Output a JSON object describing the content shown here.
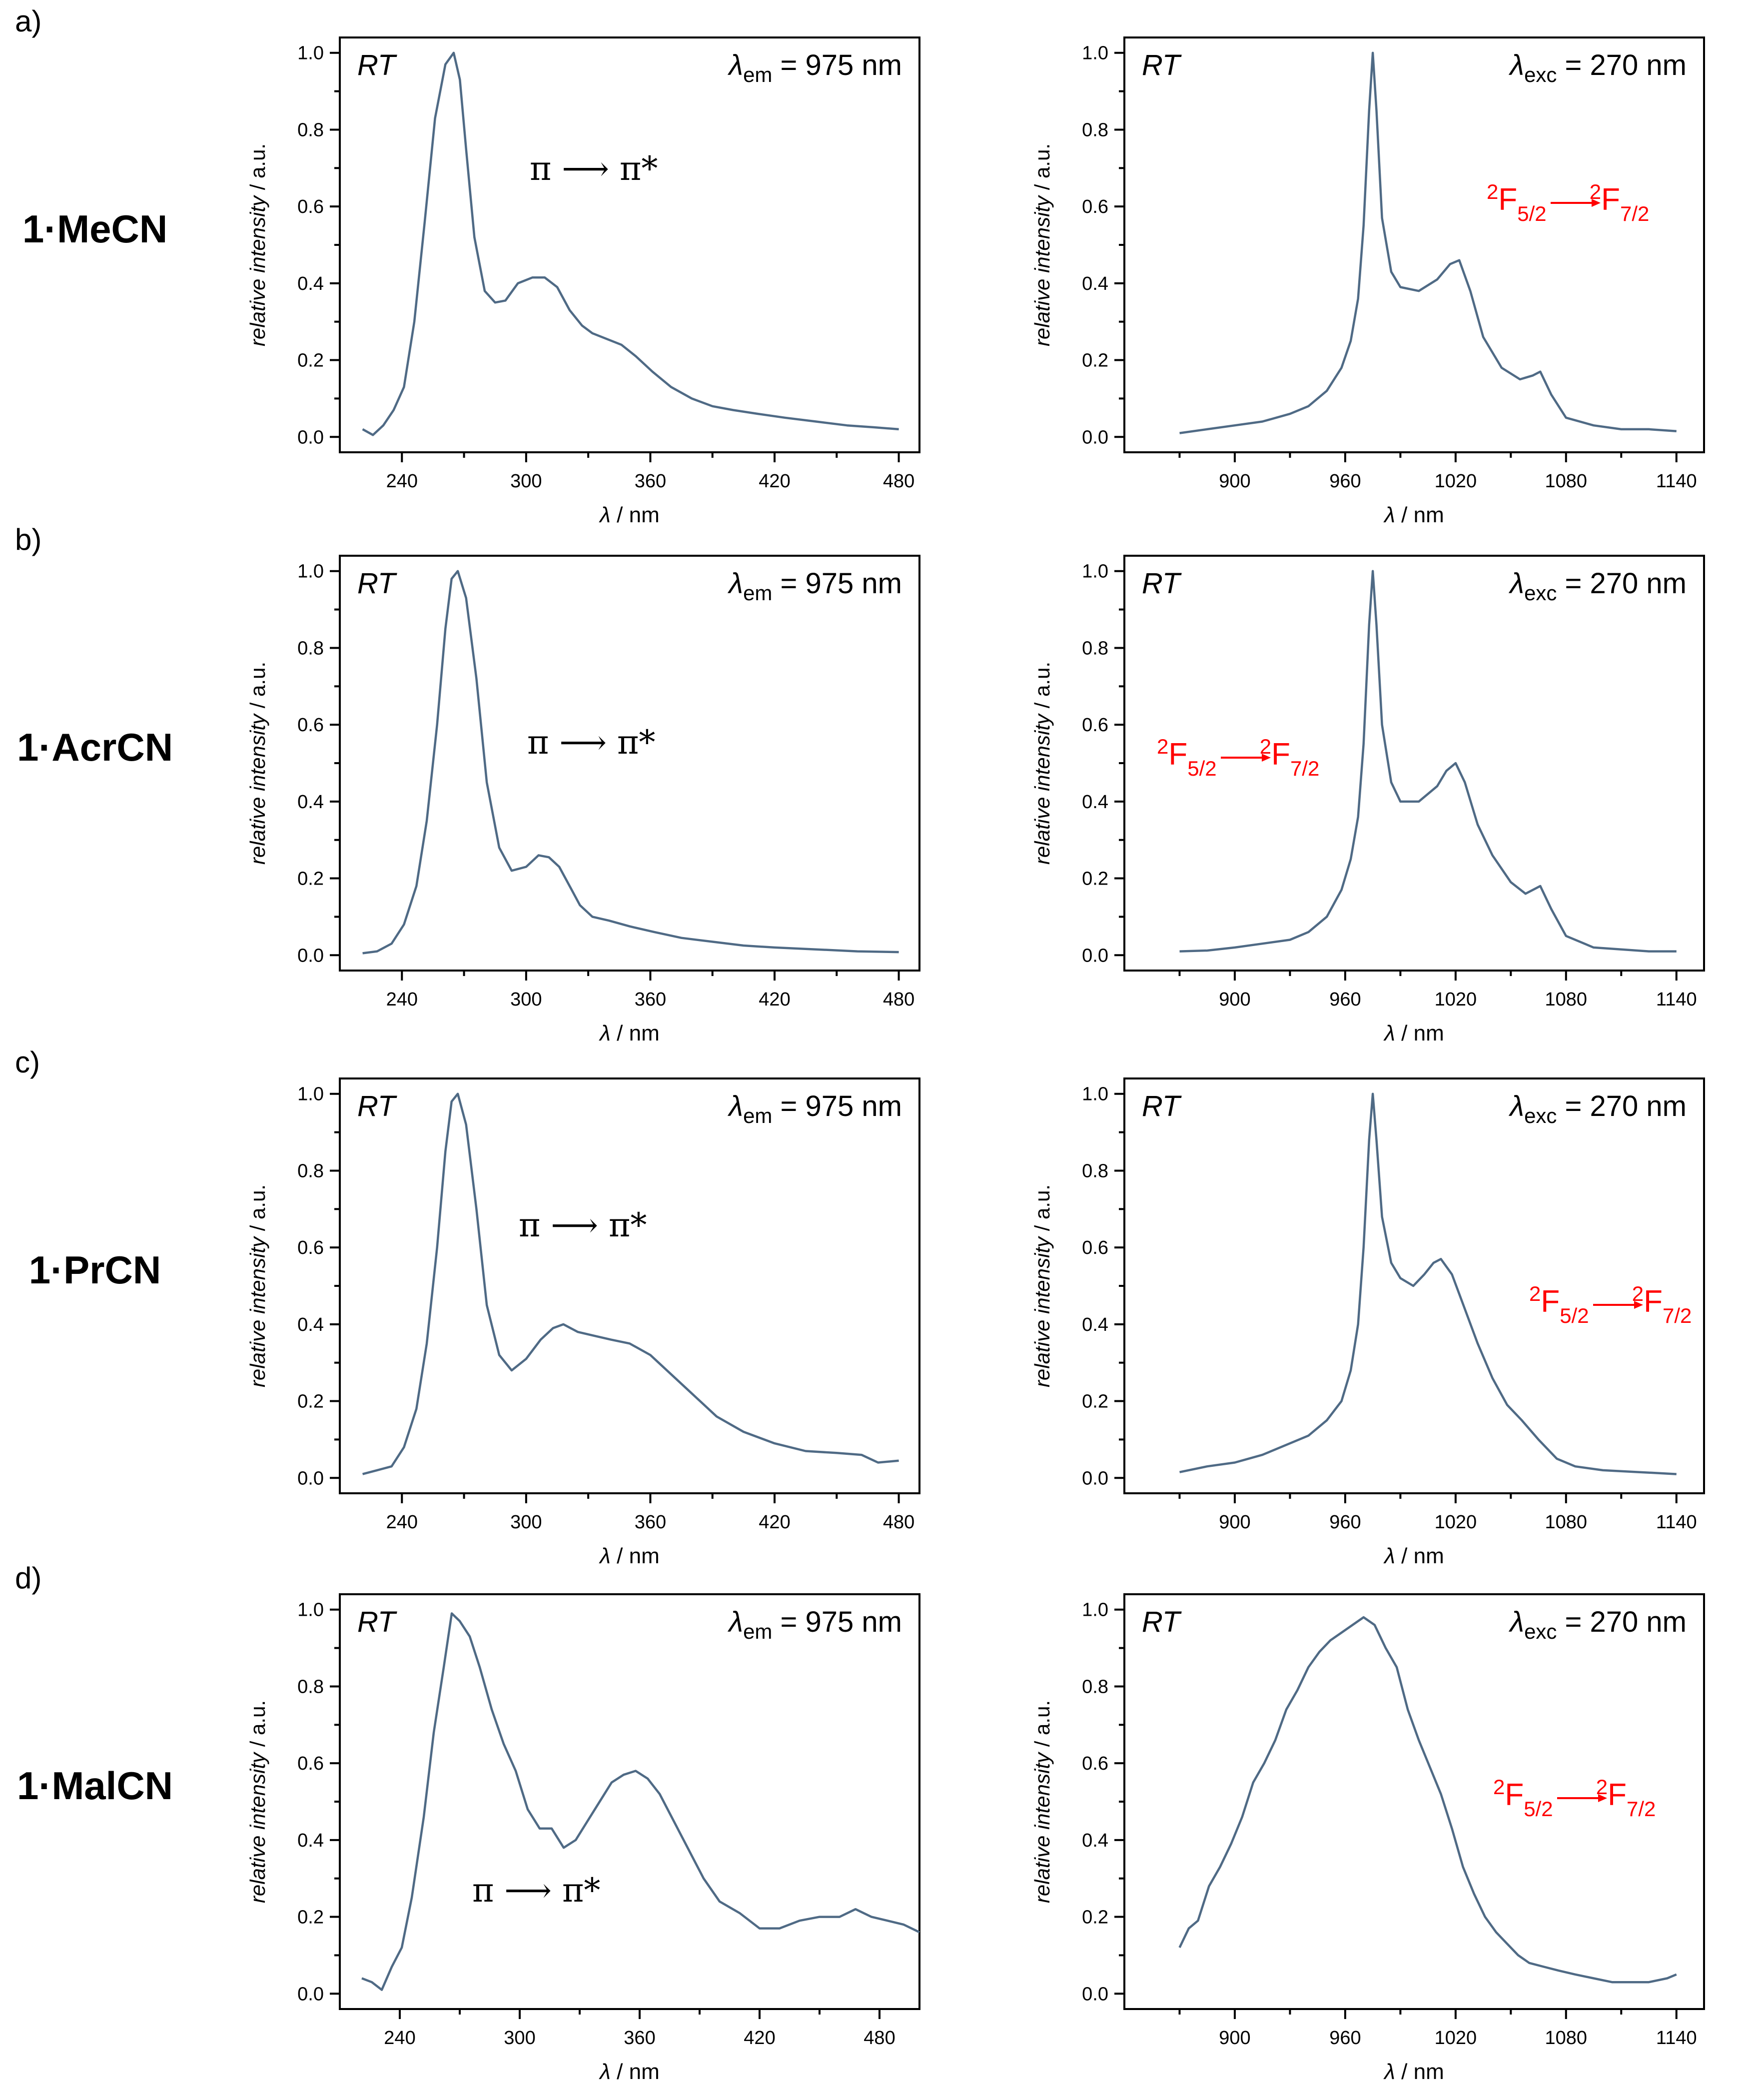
{
  "common": {
    "rt_label": "RT",
    "lambda_symbol": "λ",
    "em_sub": "em",
    "exc_sub": "exc",
    "em_value": " = 975 nm",
    "exc_value": " = 270 nm",
    "xlabel_unit": " / nm",
    "ylabel": "relative intensity / a.u.",
    "pi_transition": "π ⟶ π*",
    "f_transition": {
      "left": "F",
      "left_sup": "2",
      "left_sub": "5/2",
      "right": "F",
      "right_sup": "2",
      "right_sub": "7/2"
    },
    "color_line": "#4f6a85",
    "color_transition": "#ff0000"
  },
  "rows": [
    {
      "letter": "a)",
      "compound": "1·MeCN"
    },
    {
      "letter": "b)",
      "compound": "1·AcrCN"
    },
    {
      "letter": "c)",
      "compound": "1·PrCN"
    },
    {
      "letter": "d)",
      "compound": "1·MalCN"
    }
  ],
  "chart_data": [
    {
      "panel": "a-excitation",
      "type": "line",
      "title": "λem = 975 nm",
      "xlabel": "λ / nm",
      "ylabel": "relative intensity / a.u.",
      "xlim": [
        210,
        490
      ],
      "ylim": [
        -0.04,
        1.04
      ],
      "xticks": [
        240,
        300,
        360,
        420,
        480
      ],
      "yticks": [
        0.0,
        0.2,
        0.4,
        0.6,
        0.8,
        1.0
      ],
      "x": [
        221,
        226,
        231,
        236,
        241,
        246,
        251,
        256,
        261,
        265,
        268,
        271,
        275,
        280,
        285,
        290,
        296,
        303,
        309,
        315,
        321,
        327,
        332,
        339,
        346,
        353,
        361,
        370,
        380,
        390,
        400,
        412,
        425,
        440,
        455,
        468,
        480
      ],
      "values": [
        0.02,
        0.005,
        0.03,
        0.07,
        0.13,
        0.3,
        0.56,
        0.83,
        0.97,
        1.0,
        0.93,
        0.75,
        0.52,
        0.38,
        0.35,
        0.355,
        0.4,
        0.415,
        0.415,
        0.39,
        0.33,
        0.29,
        0.27,
        0.255,
        0.24,
        0.21,
        0.17,
        0.13,
        0.1,
        0.08,
        0.07,
        0.06,
        0.05,
        0.04,
        0.03,
        0.025,
        0.02
      ],
      "annotation": "π → π*"
    },
    {
      "panel": "a-emission",
      "type": "line",
      "title": "λexc = 270 nm",
      "xlabel": "λ / nm",
      "ylabel": "relative intensity / a.u.",
      "xlim": [
        840,
        1155
      ],
      "ylim": [
        -0.04,
        1.04
      ],
      "xticks": [
        900,
        960,
        1020,
        1080,
        1140
      ],
      "yticks": [
        0.0,
        0.2,
        0.4,
        0.6,
        0.8,
        1.0
      ],
      "x": [
        870,
        885,
        900,
        915,
        930,
        940,
        950,
        958,
        963,
        967,
        970,
        973,
        975,
        977,
        980,
        985,
        990,
        1000,
        1010,
        1017,
        1022,
        1028,
        1035,
        1045,
        1055,
        1062,
        1066,
        1072,
        1080,
        1095,
        1110,
        1125,
        1140
      ],
      "values": [
        0.01,
        0.02,
        0.03,
        0.04,
        0.06,
        0.08,
        0.12,
        0.18,
        0.25,
        0.36,
        0.55,
        0.85,
        1.0,
        0.85,
        0.57,
        0.43,
        0.39,
        0.38,
        0.41,
        0.45,
        0.46,
        0.38,
        0.26,
        0.18,
        0.15,
        0.16,
        0.17,
        0.11,
        0.05,
        0.03,
        0.02,
        0.02,
        0.015
      ],
      "annotation": "2F5/2 → 2F7/2"
    },
    {
      "panel": "b-excitation",
      "type": "line",
      "title": "λem = 975 nm",
      "xlabel": "λ / nm",
      "ylabel": "relative intensity / a.u.",
      "xlim": [
        210,
        490
      ],
      "ylim": [
        -0.04,
        1.04
      ],
      "xticks": [
        240,
        300,
        360,
        420,
        480
      ],
      "yticks": [
        0.0,
        0.2,
        0.4,
        0.6,
        0.8,
        1.0
      ],
      "x": [
        221,
        228,
        235,
        241,
        247,
        252,
        257,
        261,
        264,
        267,
        271,
        276,
        281,
        287,
        293,
        300,
        306,
        311,
        316,
        321,
        326,
        332,
        340,
        350,
        362,
        375,
        390,
        405,
        420,
        440,
        460,
        480
      ],
      "values": [
        0.005,
        0.01,
        0.03,
        0.08,
        0.18,
        0.35,
        0.6,
        0.85,
        0.98,
        1.0,
        0.93,
        0.72,
        0.45,
        0.28,
        0.22,
        0.23,
        0.26,
        0.255,
        0.23,
        0.18,
        0.13,
        0.1,
        0.09,
        0.075,
        0.06,
        0.045,
        0.035,
        0.025,
        0.02,
        0.015,
        0.01,
        0.008
      ],
      "annotation": "π → π*"
    },
    {
      "panel": "b-emission",
      "type": "line",
      "title": "λexc = 270 nm",
      "xlabel": "λ / nm",
      "ylabel": "relative intensity / a.u.",
      "xlim": [
        840,
        1155
      ],
      "ylim": [
        -0.04,
        1.04
      ],
      "xticks": [
        900,
        960,
        1020,
        1080,
        1140
      ],
      "yticks": [
        0.0,
        0.2,
        0.4,
        0.6,
        0.8,
        1.0
      ],
      "x": [
        870,
        885,
        900,
        915,
        930,
        940,
        950,
        958,
        963,
        967,
        970,
        973,
        975,
        977,
        980,
        985,
        990,
        1000,
        1010,
        1015,
        1020,
        1025,
        1032,
        1040,
        1050,
        1058,
        1062,
        1066,
        1072,
        1080,
        1095,
        1110,
        1125,
        1140
      ],
      "values": [
        0.01,
        0.012,
        0.02,
        0.03,
        0.04,
        0.06,
        0.1,
        0.17,
        0.25,
        0.36,
        0.55,
        0.86,
        1.0,
        0.86,
        0.6,
        0.45,
        0.4,
        0.4,
        0.44,
        0.48,
        0.5,
        0.45,
        0.34,
        0.26,
        0.19,
        0.16,
        0.17,
        0.18,
        0.12,
        0.05,
        0.02,
        0.015,
        0.01,
        0.01
      ],
      "annotation": "2F5/2 → 2F7/2"
    },
    {
      "panel": "c-excitation",
      "type": "line",
      "title": "λem = 975 nm",
      "xlabel": "λ / nm",
      "ylabel": "relative intensity / a.u.",
      "xlim": [
        210,
        490
      ],
      "ylim": [
        -0.04,
        1.04
      ],
      "xticks": [
        240,
        300,
        360,
        420,
        480
      ],
      "yticks": [
        0.0,
        0.2,
        0.4,
        0.6,
        0.8,
        1.0
      ],
      "x": [
        221,
        228,
        235,
        241,
        247,
        252,
        257,
        261,
        264,
        267,
        271,
        276,
        281,
        287,
        293,
        300,
        307,
        313,
        318,
        325,
        333,
        341,
        350,
        360,
        370,
        380,
        392,
        405,
        420,
        435,
        450,
        462,
        470,
        480
      ],
      "values": [
        0.01,
        0.02,
        0.03,
        0.08,
        0.18,
        0.35,
        0.6,
        0.85,
        0.98,
        1.0,
        0.92,
        0.7,
        0.45,
        0.32,
        0.28,
        0.31,
        0.36,
        0.39,
        0.4,
        0.38,
        0.37,
        0.36,
        0.35,
        0.32,
        0.27,
        0.22,
        0.16,
        0.12,
        0.09,
        0.07,
        0.065,
        0.06,
        0.04,
        0.045
      ],
      "annotation": "π → π*"
    },
    {
      "panel": "c-emission",
      "type": "line",
      "title": "λexc = 270 nm",
      "xlabel": "λ / nm",
      "ylabel": "relative intensity / a.u.",
      "xlim": [
        840,
        1155
      ],
      "ylim": [
        -0.04,
        1.04
      ],
      "xticks": [
        900,
        960,
        1020,
        1080,
        1140
      ],
      "yticks": [
        0.0,
        0.2,
        0.4,
        0.6,
        0.8,
        1.0
      ],
      "x": [
        870,
        885,
        900,
        915,
        930,
        940,
        950,
        958,
        963,
        967,
        970,
        973,
        975,
        977,
        980,
        985,
        990,
        997,
        1003,
        1008,
        1012,
        1018,
        1025,
        1032,
        1040,
        1048,
        1056,
        1065,
        1075,
        1085,
        1100,
        1120,
        1140
      ],
      "values": [
        0.015,
        0.03,
        0.04,
        0.06,
        0.09,
        0.11,
        0.15,
        0.2,
        0.28,
        0.4,
        0.6,
        0.88,
        1.0,
        0.88,
        0.68,
        0.56,
        0.52,
        0.5,
        0.53,
        0.56,
        0.57,
        0.53,
        0.44,
        0.35,
        0.26,
        0.19,
        0.15,
        0.1,
        0.05,
        0.03,
        0.02,
        0.015,
        0.01
      ],
      "annotation": "2F5/2 → 2F7/2"
    },
    {
      "panel": "d-excitation",
      "type": "line",
      "title": "λem = 975 nm",
      "xlabel": "λ / nm",
      "ylabel": "relative intensity / a.u.",
      "xlim": [
        210,
        500
      ],
      "ylim": [
        -0.04,
        1.04
      ],
      "xticks": [
        240,
        300,
        360,
        420,
        480
      ],
      "yticks": [
        0.0,
        0.2,
        0.4,
        0.6,
        0.8,
        1.0
      ],
      "x": [
        221,
        226,
        231,
        236,
        241,
        246,
        252,
        257,
        262,
        266,
        270,
        275,
        280,
        286,
        292,
        298,
        304,
        310,
        316,
        322,
        328,
        334,
        340,
        346,
        352,
        358,
        364,
        370,
        376,
        384,
        392,
        400,
        410,
        420,
        430,
        440,
        450,
        460,
        468,
        476,
        484,
        492,
        500
      ],
      "values": [
        0.04,
        0.03,
        0.01,
        0.07,
        0.12,
        0.25,
        0.46,
        0.68,
        0.85,
        0.99,
        0.97,
        0.93,
        0.85,
        0.74,
        0.65,
        0.58,
        0.48,
        0.43,
        0.43,
        0.38,
        0.4,
        0.45,
        0.5,
        0.55,
        0.57,
        0.58,
        0.56,
        0.52,
        0.46,
        0.38,
        0.3,
        0.24,
        0.21,
        0.17,
        0.17,
        0.19,
        0.2,
        0.2,
        0.22,
        0.2,
        0.19,
        0.18,
        0.16
      ],
      "annotation": "π → π*"
    },
    {
      "panel": "d-emission",
      "type": "line",
      "title": "λexc = 270 nm",
      "xlabel": "λ / nm",
      "ylabel": "relative intensity / a.u.",
      "xlim": [
        840,
        1155
      ],
      "ylim": [
        -0.04,
        1.04
      ],
      "xticks": [
        900,
        960,
        1020,
        1080,
        1140
      ],
      "yticks": [
        0.0,
        0.2,
        0.4,
        0.6,
        0.8,
        1.0
      ],
      "x": [
        870,
        875,
        880,
        886,
        892,
        898,
        904,
        910,
        916,
        922,
        928,
        934,
        940,
        946,
        952,
        958,
        964,
        970,
        976,
        982,
        988,
        994,
        1000,
        1006,
        1012,
        1018,
        1024,
        1030,
        1036,
        1042,
        1048,
        1054,
        1060,
        1068,
        1076,
        1085,
        1095,
        1105,
        1115,
        1125,
        1135,
        1140
      ],
      "values": [
        0.12,
        0.17,
        0.19,
        0.28,
        0.33,
        0.39,
        0.46,
        0.55,
        0.6,
        0.66,
        0.74,
        0.79,
        0.85,
        0.89,
        0.92,
        0.94,
        0.96,
        0.98,
        0.96,
        0.9,
        0.85,
        0.74,
        0.66,
        0.59,
        0.52,
        0.43,
        0.33,
        0.26,
        0.2,
        0.16,
        0.13,
        0.1,
        0.08,
        0.07,
        0.06,
        0.05,
        0.04,
        0.03,
        0.03,
        0.03,
        0.04,
        0.05
      ],
      "annotation": "2F5/2 → 2F7/2"
    }
  ]
}
